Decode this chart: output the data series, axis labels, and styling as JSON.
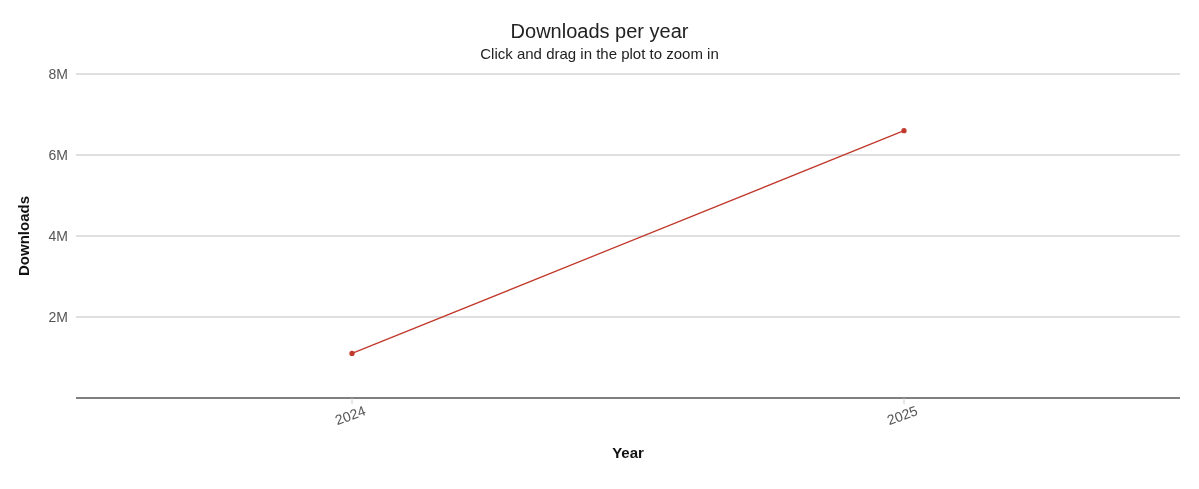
{
  "chart_data": {
    "type": "line",
    "title": "Downloads per year",
    "subtitle": "Click and drag in the plot to zoom in",
    "xlabel": "Year",
    "ylabel": "Downloads",
    "categories": [
      "2024",
      "2025"
    ],
    "series": [
      {
        "color": "#c0392b",
        "values": [
          1100000,
          6600000
        ]
      }
    ],
    "ylim": [
      0,
      8000000
    ],
    "yticks": [
      {
        "value": 2000000,
        "label": "2M"
      },
      {
        "value": 4000000,
        "label": "4M"
      },
      {
        "value": 6000000,
        "label": "6M"
      },
      {
        "value": 8000000,
        "label": "8M"
      }
    ],
    "grid": "y",
    "legend": false,
    "marker": "circle",
    "line_style": "solid"
  }
}
